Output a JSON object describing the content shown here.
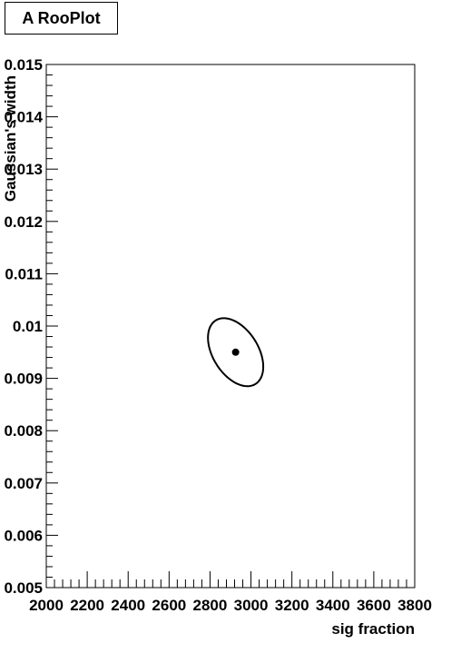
{
  "chart_data": {
    "type": "scatter",
    "title": "A RooPlot",
    "xlabel": "sig fraction",
    "ylabel": "Gaussian's width",
    "xlim": [
      2000,
      3800
    ],
    "ylim": [
      0.005,
      0.015
    ],
    "x_ticks": [
      "2000",
      "2200",
      "2400",
      "2600",
      "2800",
      "3000",
      "3200",
      "3400",
      "3600",
      "3800"
    ],
    "y_ticks": [
      "0.005",
      "0.006",
      "0.007",
      "0.008",
      "0.009",
      "0.01",
      "0.011",
      "0.012",
      "0.013",
      "0.014",
      "0.015"
    ],
    "point": {
      "x": 2925,
      "y": 0.0095
    },
    "contour": {
      "type": "ellipse",
      "center": {
        "x": 2925,
        "y": 0.0095
      },
      "x_extent": [
        2820,
        3090
      ],
      "y_extent": [
        0.0088,
        0.0101
      ]
    },
    "grid": false
  }
}
